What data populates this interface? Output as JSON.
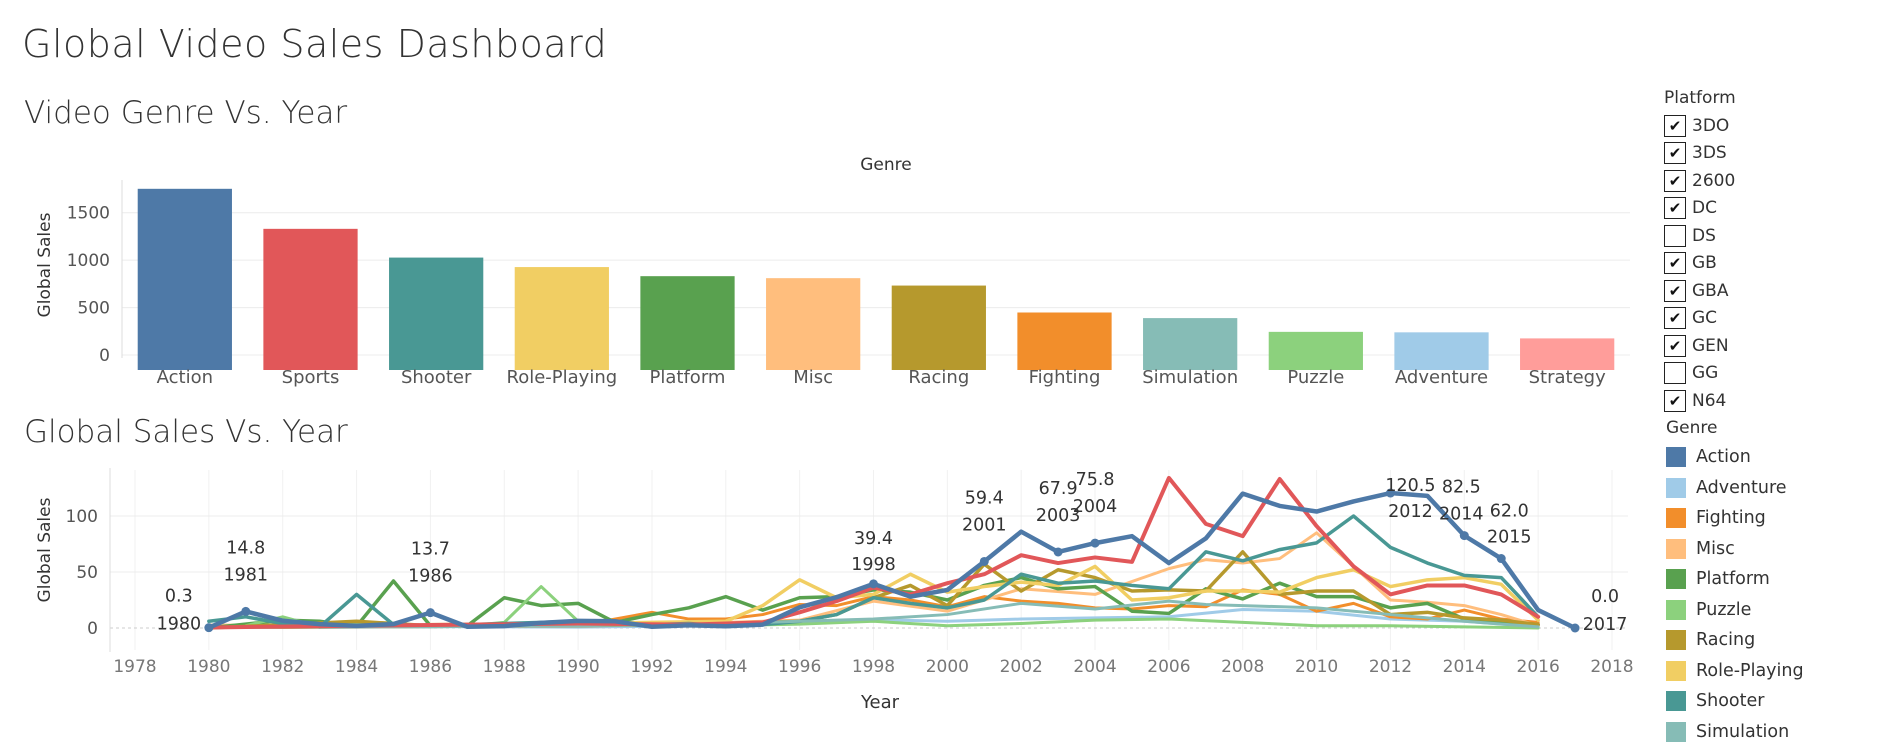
{
  "dashboard": {
    "title": "Global Video Sales Dashboard",
    "section1_title": "Video Genre Vs. Year",
    "section2_title": "Global Sales Vs. Year"
  },
  "bar_chart": {
    "header": "Genre",
    "ylabel": "Global Sales"
  },
  "line_chart": {
    "ylabel": "Global Sales",
    "xlabel": "Year"
  },
  "platform_filter": {
    "title": "Platform",
    "items": [
      {
        "label": "3DO",
        "checked": true
      },
      {
        "label": "3DS",
        "checked": true
      },
      {
        "label": "2600",
        "checked": true
      },
      {
        "label": "DC",
        "checked": true
      },
      {
        "label": "DS",
        "checked": false
      },
      {
        "label": "GB",
        "checked": true
      },
      {
        "label": "GBA",
        "checked": true
      },
      {
        "label": "GC",
        "checked": true
      },
      {
        "label": "GEN",
        "checked": true
      },
      {
        "label": "GG",
        "checked": false
      },
      {
        "label": "N64",
        "checked": true
      }
    ]
  },
  "genre_legend": {
    "title": "Genre",
    "items": [
      {
        "label": "Action",
        "color": "#4e79a7"
      },
      {
        "label": "Adventure",
        "color": "#a0cbe8"
      },
      {
        "label": "Fighting",
        "color": "#f28e2b"
      },
      {
        "label": "Misc",
        "color": "#ffbe7d"
      },
      {
        "label": "Platform",
        "color": "#59a14f"
      },
      {
        "label": "Puzzle",
        "color": "#8cd17d"
      },
      {
        "label": "Racing",
        "color": "#b6992d"
      },
      {
        "label": "Role-Playing",
        "color": "#f1ce63"
      },
      {
        "label": "Shooter",
        "color": "#499894"
      },
      {
        "label": "Simulation",
        "color": "#86bcb6"
      }
    ]
  },
  "chart_data": [
    {
      "type": "bar",
      "title": "Genre",
      "ylabel": "Global Sales",
      "xlabel": "",
      "ylim": [
        -110,
        1750
      ],
      "yticks": [
        0,
        500,
        1000,
        1500
      ],
      "categories": [
        "Action",
        "Sports",
        "Shooter",
        "Role-Playing",
        "Platform",
        "Misc",
        "Racing",
        "Fighting",
        "Simulation",
        "Puzzle",
        "Adventure",
        "Strategy"
      ],
      "values": [
        1752,
        1330,
        1027,
        927,
        831,
        810,
        732,
        448,
        389,
        244,
        239,
        175
      ],
      "colors": [
        "#4e79a7",
        "#e15759",
        "#499894",
        "#f1ce63",
        "#59a14f",
        "#ffbe7d",
        "#b6992d",
        "#f28e2b",
        "#86bcb6",
        "#8cd17d",
        "#a0cbe8",
        "#ff9d9a"
      ]
    },
    {
      "type": "line",
      "title": "Global Sales Vs. Year",
      "xlabel": "Year",
      "ylabel": "Global Sales",
      "xlim": [
        1978,
        2018
      ],
      "xticks": [
        1978,
        1980,
        1982,
        1984,
        1986,
        1988,
        1990,
        1992,
        1994,
        1996,
        1998,
        2000,
        2002,
        2004,
        2006,
        2008,
        2010,
        2012,
        2014,
        2016,
        2018
      ],
      "ylim": [
        -10,
        140
      ],
      "yticks": [
        0,
        50,
        100
      ],
      "series": [
        {
          "name": "Action",
          "color": "#4e79a7",
          "width": 4.5,
          "x": [
            1980,
            1981,
            1982,
            1983,
            1984,
            1985,
            1986,
            1987,
            1988,
            1989,
            1990,
            1991,
            1992,
            1993,
            1994,
            1995,
            1996,
            1997,
            1998,
            1999,
            2000,
            2001,
            2002,
            2003,
            2004,
            2005,
            2006,
            2007,
            2008,
            2009,
            2010,
            2011,
            2012,
            2013,
            2014,
            2015,
            2016,
            2017
          ],
          "y": [
            0.3,
            14.8,
            6.5,
            3.5,
            1.9,
            3.5,
            13.7,
            1.1,
            1.7,
            4.6,
            6.4,
            6.0,
            1.1,
            2.5,
            1.6,
            3.0,
            18.5,
            27.5,
            39.4,
            28.0,
            34.0,
            59.4,
            86.0,
            67.9,
            75.8,
            82.0,
            58.0,
            80.0,
            120.0,
            109.0,
            104.0,
            113.0,
            120.5,
            118.0,
            82.5,
            62.0,
            16.0,
            0.0
          ]
        },
        {
          "name": "Adventure",
          "color": "#a0cbe8",
          "width": 3,
          "x": [
            1983,
            1986,
            1988,
            1990,
            1992,
            1994,
            1996,
            1998,
            2000,
            2002,
            2004,
            2006,
            2008,
            2010,
            2012,
            2014,
            2016
          ],
          "y": [
            0.4,
            1.2,
            1.0,
            0.8,
            1.5,
            3.0,
            5.0,
            7.5,
            6.0,
            8.0,
            9.0,
            10.0,
            16.5,
            15.0,
            8.0,
            6.0,
            1.0
          ]
        },
        {
          "name": "Fighting",
          "color": "#f28e2b",
          "width": 3,
          "x": [
            1980,
            1982,
            1986,
            1990,
            1992,
            1993,
            1994,
            1995,
            1996,
            1997,
            1998,
            1999,
            2000,
            2001,
            2002,
            2003,
            2004,
            2005,
            2006,
            2007,
            2008,
            2009,
            2010,
            2011,
            2012,
            2013,
            2014,
            2015,
            2016
          ],
          "y": [
            0.8,
            0.5,
            1.2,
            2.0,
            14.0,
            8.0,
            8.0,
            12.0,
            21.0,
            20.0,
            28.0,
            25.0,
            19.0,
            28.0,
            24.0,
            22.0,
            18.0,
            17.0,
            20.0,
            19.0,
            34.0,
            30.0,
            15.0,
            22.0,
            10.0,
            8.0,
            16.0,
            8.0,
            5.0
          ]
        },
        {
          "name": "Misc",
          "color": "#ffbe7d",
          "width": 3,
          "x": [
            1980,
            1984,
            1988,
            1992,
            1996,
            1998,
            2000,
            2002,
            2004,
            2006,
            2007,
            2008,
            2009,
            2010,
            2011,
            2012,
            2013,
            2014,
            2015,
            2016
          ],
          "y": [
            2.7,
            2.0,
            2.0,
            3.0,
            7.0,
            24.0,
            15.0,
            35.0,
            30.0,
            53.0,
            61.0,
            58.0,
            62.0,
            85.0,
            55.0,
            25.0,
            23.0,
            20.0,
            12.0,
            2.0
          ]
        },
        {
          "name": "Platform",
          "color": "#59a14f",
          "width": 3.5,
          "x": [
            1980,
            1982,
            1983,
            1984,
            1985,
            1986,
            1987,
            1988,
            1989,
            1990,
            1991,
            1992,
            1993,
            1994,
            1995,
            1996,
            1997,
            1998,
            1999,
            2000,
            2001,
            2002,
            2003,
            2004,
            2005,
            2006,
            2007,
            2008,
            2009,
            2010,
            2011,
            2012,
            2013,
            2014,
            2015,
            2016
          ],
          "y": [
            0,
            7,
            6,
            1.5,
            42,
            2,
            2,
            27,
            20,
            22,
            5,
            12,
            18,
            28,
            16,
            27,
            28,
            34,
            32,
            25,
            38,
            45,
            35,
            37,
            15,
            13,
            35,
            26,
            40,
            28,
            28,
            18,
            22,
            8,
            6,
            3
          ]
        },
        {
          "name": "Puzzle",
          "color": "#8cd17d",
          "width": 3,
          "x": [
            1981,
            1982,
            1983,
            1984,
            1985,
            1986,
            1987,
            1988,
            1989,
            1990,
            1991,
            1992,
            1993,
            1994,
            1996,
            1998,
            2000,
            2002,
            2004,
            2006,
            2008,
            2010,
            2012,
            2014,
            2016
          ],
          "y": [
            2,
            10,
            1,
            3.5,
            3.5,
            2,
            2,
            5,
            37,
            6,
            3,
            2,
            3,
            2,
            3.5,
            6,
            2,
            4,
            7,
            8,
            5,
            2,
            2,
            1,
            0
          ]
        },
        {
          "name": "Racing",
          "color": "#b6992d",
          "width": 3.5,
          "x": [
            1980,
            1984,
            1986,
            1990,
            1992,
            1994,
            1996,
            1997,
            1998,
            1999,
            2000,
            2001,
            2002,
            2003,
            2004,
            2005,
            2006,
            2007,
            2008,
            2009,
            2010,
            2011,
            2012,
            2013,
            2014,
            2015,
            2016
          ],
          "y": [
            0,
            6,
            2,
            2,
            3,
            4,
            6,
            12,
            27,
            38,
            20,
            57,
            33,
            52,
            45,
            33,
            34,
            33,
            68,
            30,
            33,
            33,
            12,
            14,
            9,
            7,
            3
          ]
        },
        {
          "name": "Role-Playing",
          "color": "#f1ce63",
          "width": 3.5,
          "x": [
            1986,
            1990,
            1994,
            1995,
            1996,
            1997,
            1998,
            1999,
            2000,
            2001,
            2002,
            2003,
            2004,
            2005,
            2006,
            2007,
            2008,
            2009,
            2010,
            2011,
            2012,
            2013,
            2014,
            2015,
            2016
          ],
          "y": [
            3,
            4,
            6,
            20,
            43,
            27,
            30,
            48,
            32,
            37,
            41,
            38,
            55,
            25,
            27,
            33,
            33,
            32,
            45,
            52,
            37,
            43,
            45,
            39,
            7
          ]
        },
        {
          "name": "Shooter",
          "color": "#499894",
          "width": 3.5,
          "x": [
            1980,
            1981,
            1982,
            1983,
            1984,
            1985,
            1986,
            1987,
            1988,
            1989,
            1990,
            1991,
            1992,
            1993,
            1994,
            1995,
            1996,
            1997,
            1998,
            1999,
            2000,
            2001,
            2002,
            2003,
            2004,
            2005,
            2006,
            2007,
            2008,
            2009,
            2010,
            2011,
            2012,
            2013,
            2014,
            2015,
            2016
          ],
          "y": [
            6,
            10,
            4,
            1,
            30,
            3,
            2,
            3,
            4,
            5,
            6,
            4,
            3,
            4,
            2,
            3,
            6,
            12,
            27,
            22,
            18,
            25,
            48,
            40,
            42,
            38,
            35,
            68,
            60,
            70,
            76,
            100,
            72,
            58,
            47,
            45,
            10
          ]
        },
        {
          "name": "Simulation",
          "color": "#86bcb6",
          "width": 3,
          "x": [
            1981,
            1984,
            1986,
            1988,
            1990,
            1992,
            1994,
            1996,
            1998,
            2000,
            2002,
            2004,
            2006,
            2007,
            2008,
            2010,
            2012,
            2014,
            2016
          ],
          "y": [
            0.5,
            1,
            1,
            2,
            2,
            3,
            4,
            6,
            8,
            12,
            22,
            17,
            24,
            21,
            20,
            18,
            12,
            6,
            1
          ]
        },
        {
          "name": "Sports",
          "color": "#e15759",
          "width": 4,
          "x": [
            1980,
            1984,
            1987,
            1990,
            1993,
            1995,
            1996,
            1997,
            1998,
            1999,
            2000,
            2001,
            2002,
            2003,
            2004,
            2005,
            2006,
            2007,
            2008,
            2009,
            2010,
            2011,
            2012,
            2013,
            2014,
            2015,
            2016
          ],
          "y": [
            0.5,
            2,
            3,
            4,
            3,
            5,
            14,
            24,
            36,
            30,
            40,
            48,
            65,
            58,
            63,
            59,
            134,
            93,
            82,
            133,
            91,
            55,
            30,
            38,
            38,
            30,
            10
          ]
        }
      ],
      "annotations": [
        {
          "year": "1980",
          "value": "0.3"
        },
        {
          "year": "1981",
          "value": "14.8"
        },
        {
          "year": "1986",
          "value": "13.7"
        },
        {
          "year": "1998",
          "value": "39.4"
        },
        {
          "year": "2001",
          "value": "59.4"
        },
        {
          "year": "2003",
          "value": "67.9"
        },
        {
          "year": "2004",
          "value": "75.8"
        },
        {
          "year": "2012",
          "value": "120.5"
        },
        {
          "year": "2014",
          "value": "82.5"
        },
        {
          "year": "2015",
          "value": "62.0"
        },
        {
          "year": "2017",
          "value": "0.0"
        }
      ]
    }
  ]
}
